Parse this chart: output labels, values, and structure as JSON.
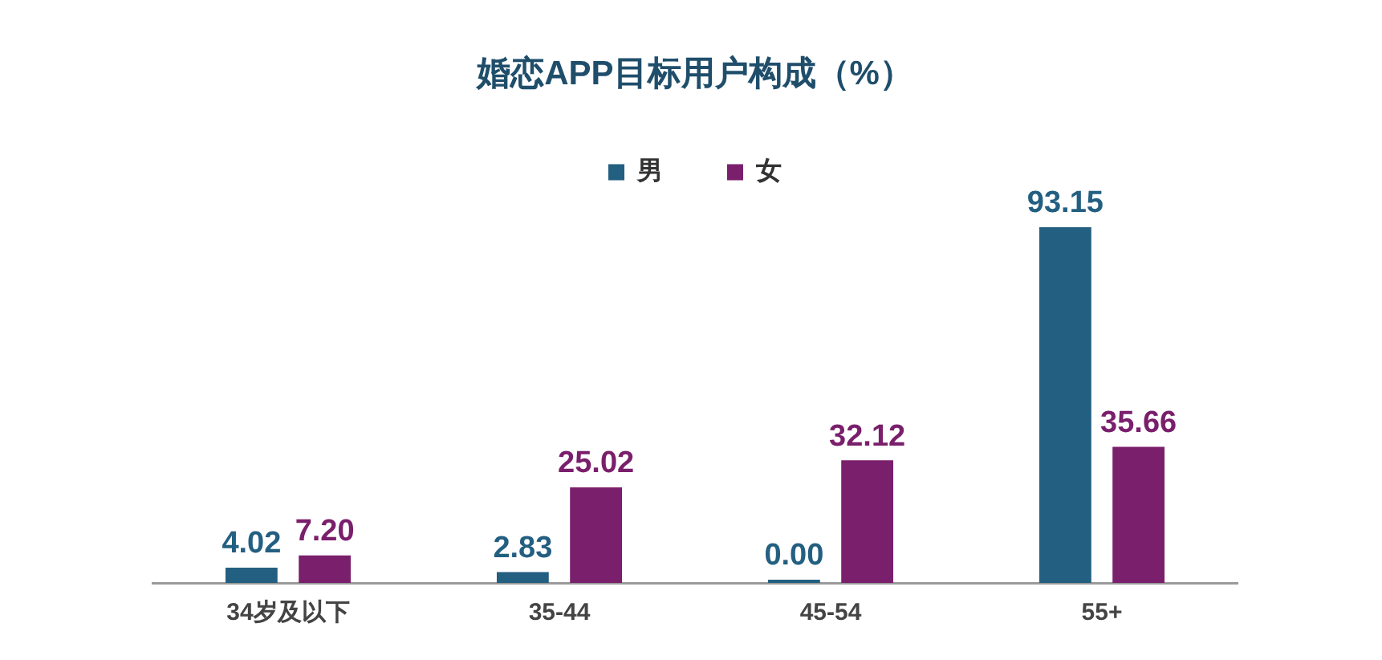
{
  "chart_data": {
    "type": "bar",
    "title": "婚恋APP目标用户构成（%）",
    "categories": [
      "34岁及以下",
      "35-44",
      "45-54",
      "55+"
    ],
    "series": [
      {
        "name": "男",
        "color": "#235f80",
        "values": [
          4.02,
          2.83,
          0.0,
          93.15
        ],
        "value_labels": [
          "4.02",
          "2.83",
          "0.00",
          "93.15"
        ]
      },
      {
        "name": "女",
        "color": "#7a1f6c",
        "values": [
          7.2,
          25.02,
          32.12,
          35.66
        ],
        "value_labels": [
          "7.20",
          "25.02",
          "32.12",
          "35.66"
        ]
      }
    ],
    "legend": "top",
    "grid": false
  }
}
